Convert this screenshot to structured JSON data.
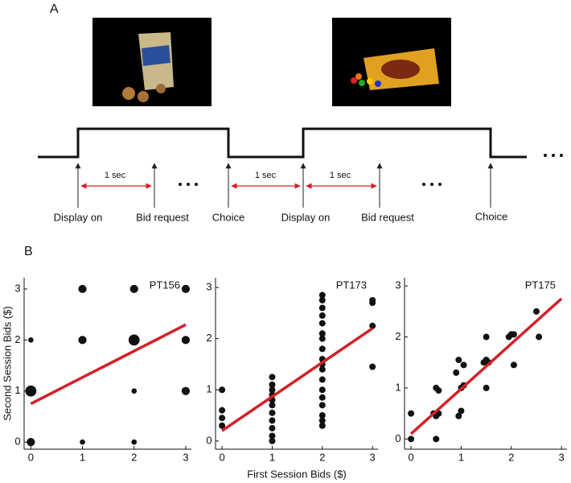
{
  "diagram": {
    "panel_label": "A",
    "events": [
      "Display on",
      "Bid request",
      "Choice",
      "Display on",
      "Bid request",
      "Choice"
    ],
    "intervals": [
      "1 sec",
      "1 sec",
      "1 sec"
    ]
  },
  "panel_label_b": "B",
  "chart_data": [
    {
      "type": "scatter",
      "title": "PT156",
      "ylabel": "Second Session Bids ($)",
      "xlim": [
        -0.13,
        3.11
      ],
      "ylim": [
        -0.14,
        3.22
      ],
      "xticks": [
        0,
        1,
        2,
        3
      ],
      "yticks": [
        0,
        1,
        2,
        3
      ],
      "series": [
        {
          "color": "#111111",
          "x": [
            0,
            0,
            0,
            1,
            1,
            1,
            2,
            2,
            2,
            2,
            3,
            3,
            3
          ],
          "values": [
            1,
            0,
            2,
            3,
            2,
            0,
            3,
            2,
            1,
            0,
            3,
            2,
            1
          ],
          "sizes": [
            3,
            2,
            1,
            2,
            2,
            1,
            2,
            3,
            1,
            1,
            2,
            2,
            2
          ]
        },
        {
          "type": "line",
          "color": "#d42027",
          "x": [
            0,
            3
          ],
          "values": [
            0.75,
            2.3
          ]
        }
      ]
    },
    {
      "type": "scatter",
      "title": "PT173",
      "xlabel": "First Session Bids ($)",
      "xlim": [
        -0.13,
        3.11
      ],
      "ylim": [
        -0.16,
        3.19
      ],
      "xticks": [
        0,
        1,
        2,
        3
      ],
      "yticks": [
        0,
        1,
        2,
        3
      ],
      "series": [
        {
          "color": "#111111",
          "x": [
            0,
            0,
            0,
            0,
            1,
            1,
            1,
            1,
            1,
            1,
            1,
            1,
            1,
            1,
            1,
            2,
            2,
            2,
            2,
            2,
            2,
            2,
            2,
            2,
            2,
            2,
            2,
            2,
            2,
            2,
            2,
            2,
            2,
            3,
            3,
            3,
            3
          ],
          "values": [
            1.0,
            0.6,
            0.45,
            0.3,
            0,
            0.1,
            0.25,
            0.4,
            0.55,
            0.7,
            0.8,
            0.9,
            1.0,
            1.1,
            1.25,
            0.3,
            0.4,
            0.5,
            0.7,
            0.85,
            1.0,
            1.2,
            1.4,
            1.5,
            1.6,
            1.8,
            2.0,
            2.1,
            2.3,
            2.45,
            2.6,
            2.75,
            2.85,
            1.45,
            2.25,
            2.7,
            2.75
          ]
        },
        {
          "type": "line",
          "color": "#d42027",
          "x": [
            0,
            3
          ],
          "values": [
            0.2,
            2.2
          ]
        }
      ]
    },
    {
      "type": "scatter",
      "title": "PT175",
      "xlim": [
        -0.13,
        3.11
      ],
      "ylim": [
        -0.2,
        3.16
      ],
      "xticks": [
        0,
        1,
        2,
        3
      ],
      "yticks": [
        0,
        1,
        2,
        3
      ],
      "series": [
        {
          "color": "#111111",
          "x": [
            0,
            0,
            0.5,
            0.45,
            0.5,
            0.55,
            0.5,
            0.55,
            0.95,
            1,
            1,
            1.05,
            0.95,
            1.05,
            0.9,
            1.5,
            1.5,
            1.55,
            1.45,
            1.5,
            1.95,
            2,
            2.05,
            2.05,
            2.55,
            2.5
          ],
          "values": [
            0.5,
            0,
            0,
            0.5,
            0.45,
            0.5,
            1.0,
            0.95,
            0.45,
            0.55,
            1,
            1.05,
            1.55,
            1.45,
            1.3,
            1,
            1.55,
            1.5,
            1.5,
            2.0,
            2.0,
            2.05,
            2.05,
            1.45,
            2.0,
            2.5
          ]
        },
        {
          "type": "line",
          "color": "#d42027",
          "x": [
            0,
            3
          ],
          "values": [
            0.1,
            2.75
          ]
        }
      ]
    }
  ]
}
